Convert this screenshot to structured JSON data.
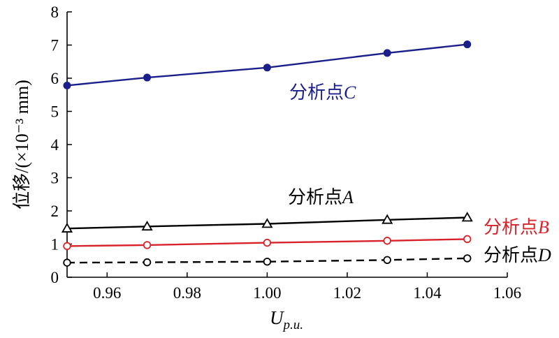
{
  "chart_data": {
    "type": "line",
    "xlabel_main": "U",
    "xlabel_sub": "p.u.",
    "ylabel": "位移/(×10⁻³ mm)",
    "xlim": [
      0.95,
      1.06
    ],
    "ylim": [
      0,
      8
    ],
    "xticks": [
      "0.96",
      "0.98",
      "1.00",
      "1.02",
      "1.04",
      "1.06"
    ],
    "yticks": [
      "0",
      "1",
      "2",
      "3",
      "4",
      "5",
      "6",
      "7",
      "8"
    ],
    "grid": false,
    "x": [
      0.95,
      0.97,
      1.0,
      1.03,
      1.05
    ],
    "series": [
      {
        "name": "分析点C",
        "label_prefix": "分析点",
        "label_letter": "C",
        "color": "#1a1f8c",
        "marker": "filled-circle",
        "dash": "solid",
        "values": [
          5.78,
          6.02,
          6.32,
          6.76,
          7.02
        ]
      },
      {
        "name": "分析点A",
        "label_prefix": "分析点",
        "label_letter": "A",
        "color": "#000000",
        "marker": "open-triangle",
        "dash": "solid",
        "values": [
          1.47,
          1.53,
          1.61,
          1.73,
          1.8
        ]
      },
      {
        "name": "分析点B",
        "label_prefix": "分析点",
        "label_letter": "B",
        "color": "#d8222a",
        "marker": "open-circle",
        "dash": "solid",
        "values": [
          0.94,
          0.97,
          1.04,
          1.1,
          1.15
        ]
      },
      {
        "name": "分析点D",
        "label_prefix": "分析点",
        "label_letter": "D",
        "color": "#000000",
        "marker": "open-circle",
        "dash": "dashed",
        "values": [
          0.44,
          0.45,
          0.47,
          0.52,
          0.57
        ]
      }
    ]
  }
}
